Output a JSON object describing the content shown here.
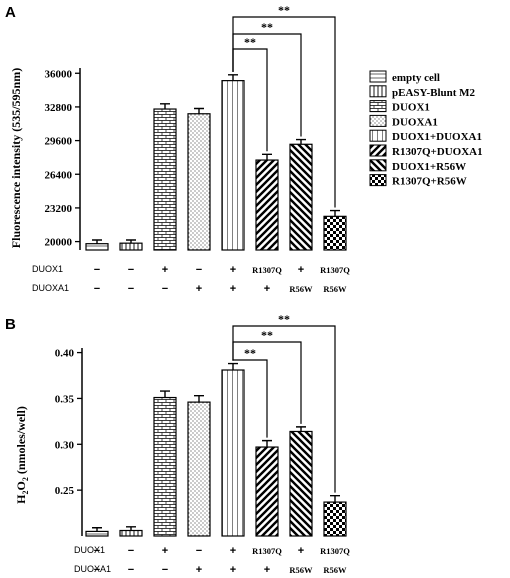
{
  "colors": {
    "ink": "#000000",
    "background": "#ffffff"
  },
  "legend": {
    "entries": [
      {
        "label": "empty cell",
        "pattern": "empty-cell"
      },
      {
        "label": "pEASY-Blunt M2",
        "pattern": "peasy"
      },
      {
        "label": "DUOX1",
        "pattern": "duox1"
      },
      {
        "label": "DUOXA1",
        "pattern": "duoxa1"
      },
      {
        "label": "DUOX1+DUOXA1",
        "pattern": "duox1-duoxa1"
      },
      {
        "label": "R1307Q+DUOXA1",
        "pattern": "r1307q-duoxa1"
      },
      {
        "label": "DUOX1+R56W",
        "pattern": "duox1-r56w"
      },
      {
        "label": "R1307Q+R56W",
        "pattern": "r1307q-r56w"
      }
    ]
  },
  "condition_rows": {
    "labels": [
      "DUOX1",
      "DUOXA1"
    ],
    "duox1": [
      "−",
      "−",
      "+",
      "−",
      "+",
      "R1307Q",
      "+",
      "R1307Q"
    ],
    "duoxa1": [
      "−",
      "−",
      "−",
      "+",
      "+",
      "+",
      "R56W",
      "R56W"
    ]
  },
  "chart_data": [
    {
      "panel_label": "A",
      "type": "bar",
      "ylabel": "Fluorescence intensity (535/595nm)",
      "ylim": [
        19200,
        36500
      ],
      "yticks": [
        20000,
        23200,
        26400,
        29600,
        32800,
        36000
      ],
      "ytick_labels": [
        "20000",
        "23200",
        "26400",
        "29600",
        "32800",
        "36000"
      ],
      "categories": [
        "empty cell",
        "pEASY-Blunt M2",
        "DUOX1",
        "DUOXA1",
        "DUOX1+DUOXA1",
        "R1307Q+DUOXA1",
        "DUOX1+R56W",
        "R1307Q+R56W"
      ],
      "values": [
        19800,
        19850,
        32600,
        32150,
        35300,
        27750,
        29250,
        22400
      ],
      "errors": [
        350,
        300,
        500,
        500,
        550,
        550,
        450,
        550
      ],
      "significance": [
        {
          "from": 4,
          "to": 5,
          "label": "**"
        },
        {
          "from": 4,
          "to": 6,
          "label": "**"
        },
        {
          "from": 4,
          "to": 7,
          "label": "**"
        }
      ]
    },
    {
      "panel_label": "B",
      "type": "bar",
      "ylabel_parts": [
        "H",
        "2",
        "O",
        "2",
        " (nmoles/well)"
      ],
      "ylim": [
        0.2,
        0.405
      ],
      "yticks": [
        0.25,
        0.3,
        0.35,
        0.4
      ],
      "ytick_labels": [
        "0.25",
        "0.30",
        "0.35",
        "0.40"
      ],
      "categories": [
        "empty cell",
        "pEASY-Blunt M2",
        "DUOX1",
        "DUOXA1",
        "DUOX1+DUOXA1",
        "R1307Q+DUOXA1",
        "DUOX1+R56W",
        "R1307Q+R56W"
      ],
      "values": [
        0.205,
        0.206,
        0.351,
        0.346,
        0.381,
        0.297,
        0.314,
        0.237
      ],
      "errors": [
        0.004,
        0.004,
        0.007,
        0.007,
        0.007,
        0.007,
        0.005,
        0.007
      ],
      "significance": [
        {
          "from": 4,
          "to": 5,
          "label": "**"
        },
        {
          "from": 4,
          "to": 6,
          "label": "**"
        },
        {
          "from": 4,
          "to": 7,
          "label": "**"
        }
      ]
    }
  ]
}
